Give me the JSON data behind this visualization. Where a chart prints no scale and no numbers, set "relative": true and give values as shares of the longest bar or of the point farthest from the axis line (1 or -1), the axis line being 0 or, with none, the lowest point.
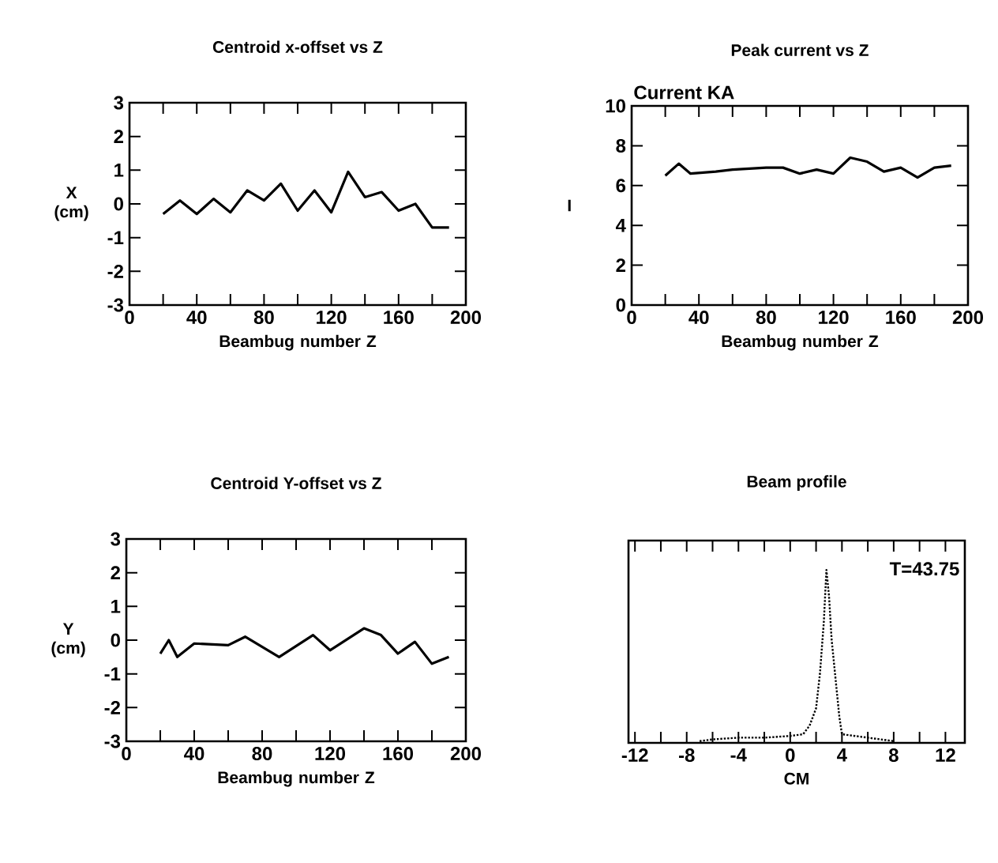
{
  "chart_data": [
    {
      "type": "line",
      "title": "Centroid x-offset vs Z",
      "xlabel": "Beambug number Z",
      "ylabel": "X (cm)",
      "x": [
        20,
        30,
        40,
        50,
        60,
        70,
        80,
        90,
        100,
        110,
        120,
        130,
        140,
        150,
        160,
        170,
        180,
        190
      ],
      "values": [
        -0.3,
        0.1,
        -0.3,
        0.15,
        -0.25,
        0.4,
        0.1,
        0.6,
        -0.2,
        0.4,
        -0.25,
        0.95,
        0.2,
        0.35,
        -0.2,
        0.0,
        -0.7,
        -0.7
      ],
      "color": "#000000",
      "xlim": [
        0,
        200
      ],
      "xticks": [
        0,
        {
          "value": 20,
          "label": null
        },
        40,
        {
          "value": 60,
          "label": null
        },
        80,
        {
          "value": 100,
          "label": null
        },
        120,
        {
          "value": 140,
          "label": null
        },
        160,
        {
          "value": 180,
          "label": null
        },
        200
      ],
      "ylim": [
        -3,
        3
      ],
      "yticks": [
        -3,
        -2,
        -1,
        0,
        1,
        2,
        3
      ]
    },
    {
      "type": "line",
      "title": "Peak current vs Z",
      "xlabel": "Beambug number Z",
      "ylabel": "I",
      "annotations": [
        "Current KA"
      ],
      "x": [
        20,
        28,
        35,
        50,
        60,
        80,
        90,
        100,
        110,
        120,
        130,
        140,
        150,
        160,
        170,
        180,
        190
      ],
      "values": [
        6.5,
        7.1,
        6.6,
        6.7,
        6.8,
        6.9,
        6.9,
        6.6,
        6.8,
        6.6,
        7.4,
        7.2,
        6.7,
        6.9,
        6.4,
        6.9,
        7.0
      ],
      "color": "#000000",
      "xlim": [
        0,
        200
      ],
      "xticks": [
        0,
        {
          "value": 20,
          "label": null
        },
        40,
        {
          "value": 60,
          "label": null
        },
        80,
        {
          "value": 100,
          "label": null
        },
        120,
        {
          "value": 140,
          "label": null
        },
        160,
        {
          "value": 180,
          "label": null
        },
        200
      ],
      "ylim": [
        0,
        10
      ],
      "yticks": [
        0,
        2,
        4,
        6,
        8,
        10
      ]
    },
    {
      "type": "line",
      "title": "Centroid Y-offset vs Z",
      "xlabel": "Beambug number Z",
      "ylabel": "Y (cm)",
      "x": [
        20,
        25,
        30,
        40,
        60,
        70,
        90,
        110,
        120,
        140,
        150,
        160,
        170,
        180,
        190
      ],
      "values": [
        -0.4,
        0.0,
        -0.5,
        -0.1,
        -0.15,
        0.1,
        -0.5,
        0.15,
        -0.3,
        0.35,
        0.15,
        -0.4,
        -0.05,
        -0.7,
        -0.5
      ],
      "color": "#000000",
      "xlim": [
        0,
        200
      ],
      "xticks": [
        0,
        {
          "value": 20,
          "label": null
        },
        40,
        {
          "value": 60,
          "label": null
        },
        80,
        {
          "value": 100,
          "label": null
        },
        120,
        {
          "value": 140,
          "label": null
        },
        160,
        {
          "value": 180,
          "label": null
        },
        200
      ],
      "ylim": [
        -3,
        3
      ],
      "yticks": [
        -3,
        -2,
        -1,
        0,
        1,
        2,
        3
      ]
    },
    {
      "type": "line",
      "title": "Beam profile",
      "xlabel": "CM",
      "annotations": [
        "T=43.75"
      ],
      "relative": true,
      "line_style": "dotted",
      "tick_labels": "x",
      "x": [
        -7,
        -6,
        -4,
        -2,
        0,
        1,
        1.5,
        2,
        2.3,
        2.6,
        2.8,
        3.0,
        3.2,
        3.4,
        3.6,
        3.8,
        4,
        5,
        6,
        7,
        8
      ],
      "values": [
        0.01,
        0.02,
        0.03,
        0.03,
        0.04,
        0.05,
        0.1,
        0.2,
        0.4,
        0.7,
        1.0,
        0.85,
        0.6,
        0.45,
        0.3,
        0.15,
        0.05,
        0.04,
        0.03,
        0.02,
        0.01
      ],
      "color": "#000000",
      "xlim": [
        -12.5,
        13.5
      ],
      "xticks": [
        -12,
        {
          "value": -10,
          "label": null
        },
        -8,
        {
          "value": -6,
          "label": null
        },
        -4,
        {
          "value": -2,
          "label": null
        },
        0,
        {
          "value": 2,
          "label": null
        },
        4,
        {
          "value": 6,
          "label": null
        },
        8,
        {
          "value": 10,
          "label": null
        },
        12
      ]
    }
  ]
}
